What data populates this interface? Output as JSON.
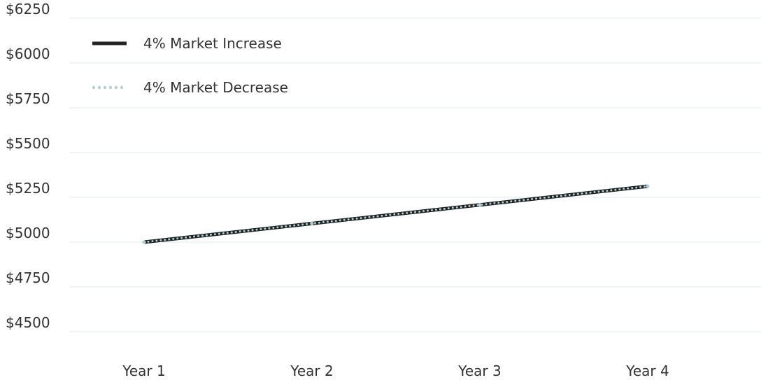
{
  "chart_data": {
    "type": "line",
    "categories": [
      "Year 1",
      "Year 2",
      "Year 3",
      "Year 4"
    ],
    "ylim": [
      4500,
      6250
    ],
    "y_ticks": [
      4500,
      4750,
      5000,
      5250,
      5500,
      5750,
      6000,
      6250
    ],
    "y_tick_labels": [
      "$4500",
      "$4750",
      "$5000",
      "$5250",
      "$5500",
      "$5750",
      "$6000",
      "$6250"
    ],
    "grid": true,
    "legend_position": "top-left",
    "series": [
      {
        "name": "4% Market Increase",
        "values": [
          5000,
          5104,
          5208,
          5312
        ],
        "color": "#222222",
        "style": "solid"
      },
      {
        "name": "4% Market Decrease",
        "values": [
          5000,
          5104,
          5208,
          5312
        ],
        "color": "#a9cfd2",
        "style": "dotted"
      }
    ]
  }
}
